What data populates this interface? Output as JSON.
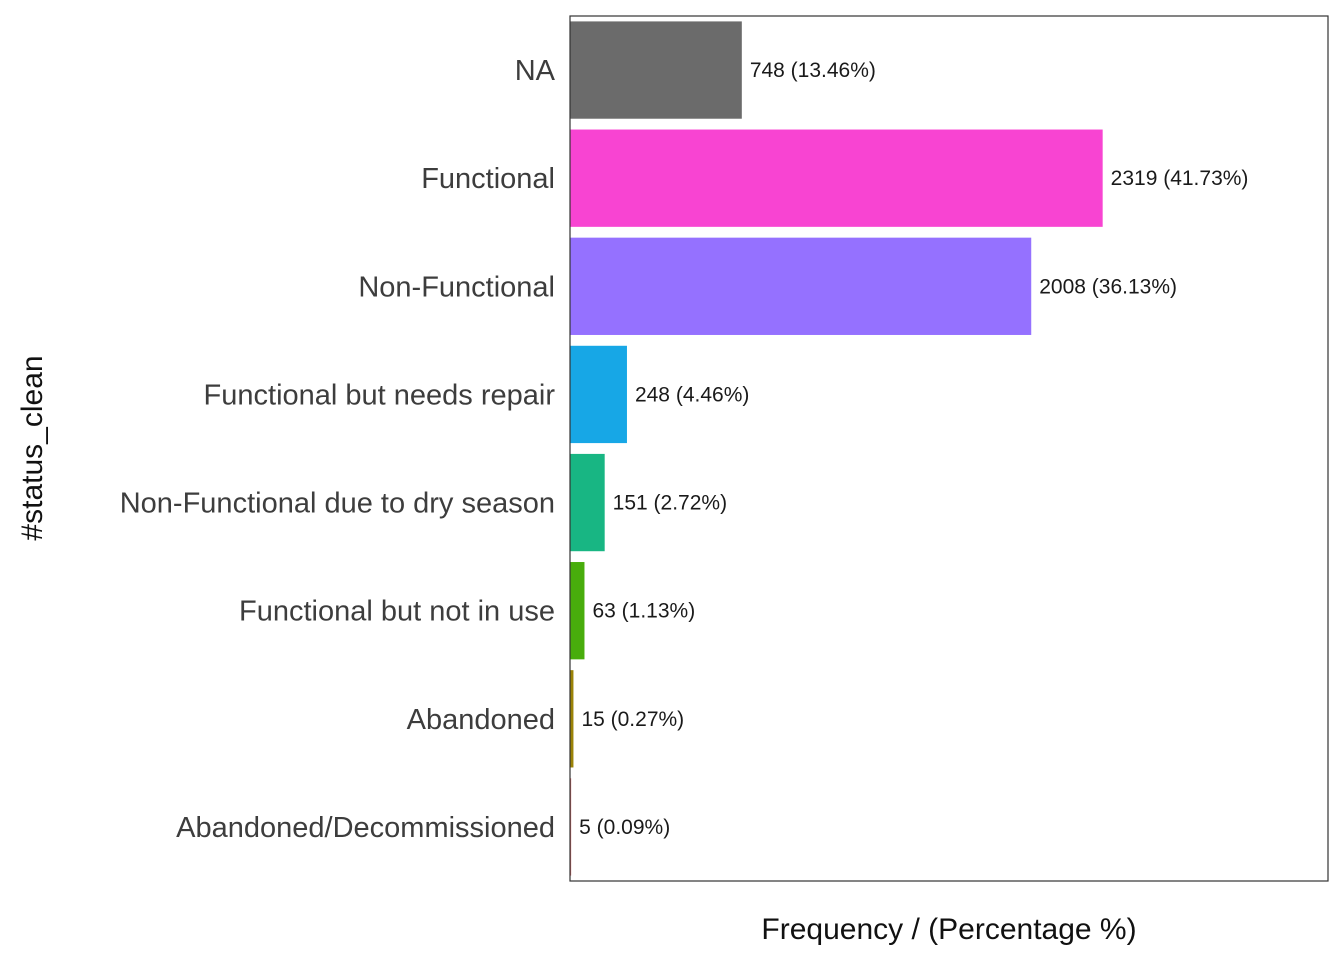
{
  "chart_data": {
    "type": "bar",
    "orientation": "horizontal",
    "xlabel": "Frequency / (Percentage %)",
    "ylabel": "#status_clean",
    "xlim": [
      0,
      3300
    ],
    "grid": false,
    "legend": "none",
    "categories": [
      "NA",
      "Functional",
      "Non-Functional",
      "Functional but needs repair",
      "Non-Functional due to dry season",
      "Functional but not in use",
      "Abandoned",
      "Abandoned/Decommissioned"
    ],
    "values": [
      748,
      2319,
      2008,
      248,
      151,
      63,
      15,
      5
    ],
    "data_labels": [
      "748 (13.46%)",
      "2319 (41.73%)",
      "2008 (36.13%)",
      "248 (4.46%)",
      "151 (2.72%)",
      "63 (1.13%)",
      "15 (0.27%)",
      "5 (0.09%)"
    ],
    "colors": [
      "#6b6b6b",
      "#f844d2",
      "#9571ff",
      "#17a7e6",
      "#18b683",
      "#48ad0c",
      "#9b8308",
      "#d36a6a"
    ]
  }
}
